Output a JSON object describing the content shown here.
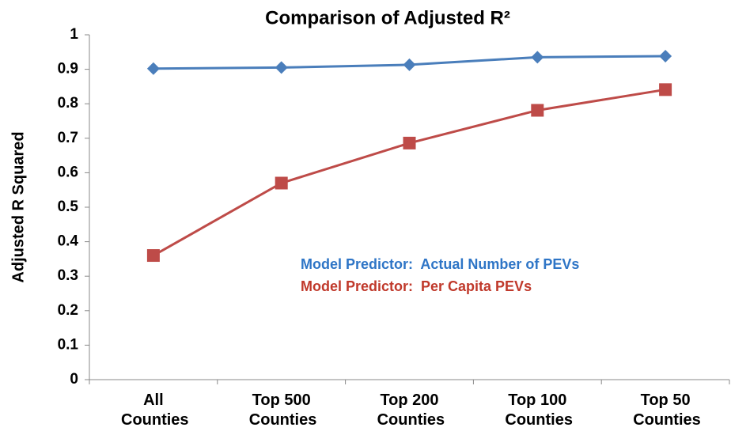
{
  "chart_data": {
    "type": "line",
    "title": "Comparison of Adjusted R²",
    "y_label": "Adjusted R Squared",
    "categories": [
      "All Counties",
      "Top 500 Counties",
      "Top 200 Counties",
      "Top 100 Counties",
      "Top 50 Counties"
    ],
    "series": [
      {
        "name": "Model Predictor:  Actual Number of PEVs",
        "color": "#4a7ebb",
        "text_color": "#2e75c6",
        "marker": "diamond",
        "values": [
          0.902,
          0.905,
          0.913,
          0.935,
          0.938
        ]
      },
      {
        "name": "Model Predictor:  Per Capita PEVs",
        "color": "#be4b48",
        "text_color": "#c0392b",
        "marker": "square",
        "values": [
          0.36,
          0.57,
          0.686,
          0.781,
          0.841
        ]
      }
    ],
    "ylim": [
      0,
      1
    ],
    "yticks": [
      0,
      0.1,
      0.2,
      0.3,
      0.4,
      0.5,
      0.6,
      0.7,
      0.8,
      0.9,
      1
    ],
    "grid": false
  }
}
